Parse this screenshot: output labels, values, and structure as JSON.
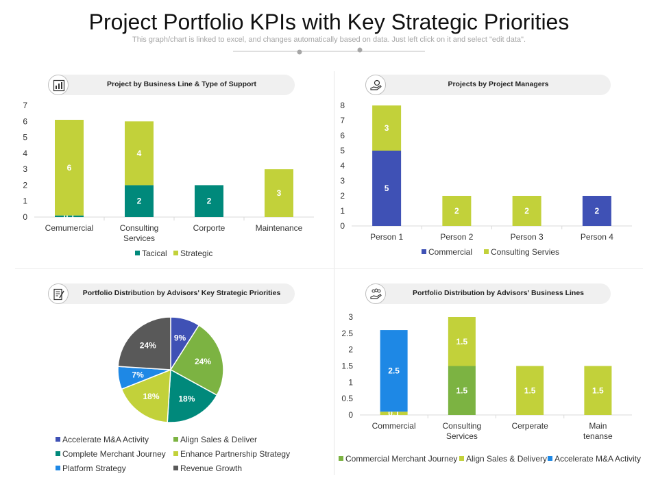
{
  "page": {
    "title": "Project Portfolio KPIs with Key Strategic Priorities",
    "subtitle": "This graph/chart is linked to excel, and changes automatically based on data. Just left click on it and select \"edit data\"."
  },
  "panels": [
    {
      "heading": "Project by Business Line & Type of Support",
      "icon": "chart-report-icon"
    },
    {
      "heading": "Projects by Project Managers",
      "icon": "hand-money-icon"
    },
    {
      "heading": "Portfolio Distribution by Advisors' Key Strategic Priorities",
      "icon": "document-pen-icon"
    },
    {
      "heading": "Portfolio Distribution by Advisors' Business Lines",
      "icon": "hand-people-icon"
    }
  ],
  "colors": {
    "teal": "#00897b",
    "lime": "#c2d13a",
    "blue": "#3f51b5",
    "green": "#7cb342",
    "skyblue": "#1e88e5",
    "gray": "#595959"
  },
  "chart_data": [
    {
      "type": "bar",
      "stacked": true,
      "categories": [
        "Cemumercial",
        "Consulting Services",
        "Corporte",
        "Maintenance"
      ],
      "series": [
        {
          "name": "Tacical",
          "values": [
            0.1,
            2,
            2,
            0
          ],
          "color": "#00897b"
        },
        {
          "name": "Strategic",
          "values": [
            6,
            4,
            0,
            3
          ],
          "color": "#c2d13a"
        }
      ],
      "data_labels": [
        [
          "0.1",
          "2",
          "2",
          null
        ],
        [
          "6",
          "4",
          null,
          "3"
        ]
      ],
      "ylim": [
        0,
        7
      ],
      "yticks": [
        "0",
        "1",
        "2",
        "3",
        "4",
        "5",
        "6",
        "7"
      ],
      "legend": "bottom",
      "grid": false
    },
    {
      "type": "bar",
      "stacked": true,
      "categories": [
        "Person 1",
        "Person 2",
        "Person 3",
        "Person 4"
      ],
      "series": [
        {
          "name": "Commercial",
          "values": [
            5,
            0,
            0,
            2
          ],
          "color": "#3f51b5"
        },
        {
          "name": "Consulting Servies",
          "values": [
            3,
            2,
            2,
            0
          ],
          "color": "#c2d13a"
        }
      ],
      "data_labels": [
        [
          "5",
          null,
          null,
          "2"
        ],
        [
          "3",
          "2",
          "2",
          null
        ]
      ],
      "ylim": [
        0,
        8
      ],
      "yticks": [
        "0",
        "1",
        "2",
        "3",
        "4",
        "5",
        "6",
        "7",
        "8"
      ],
      "legend": "bottom",
      "grid": false
    },
    {
      "type": "pie",
      "slices": [
        {
          "label": "Accelerate M&A Activity",
          "value": 9,
          "text": "9%",
          "color": "#3f51b5"
        },
        {
          "label": "Align Sales & Deliver",
          "value": 24,
          "text": "24%",
          "color": "#7cb342"
        },
        {
          "label": "Complete Merchant Journey",
          "value": 18,
          "text": "18%",
          "color": "#00897b"
        },
        {
          "label": "Enhance Partnership Strategy",
          "value": 18,
          "text": "18%",
          "color": "#c2d13a"
        },
        {
          "label": "Platform Strategy",
          "value": 7,
          "text": "7%",
          "color": "#1e88e5"
        },
        {
          "label": "Revenue Growth",
          "value": 24,
          "text": "24%",
          "color": "#595959"
        }
      ],
      "legend": "bottom"
    },
    {
      "type": "bar",
      "stacked": true,
      "categories": [
        "Commercial",
        "Consulting Services",
        "Cerperate",
        "Main tenanse"
      ],
      "series": [
        {
          "name": "Commercial Merchant Journey",
          "values": [
            0,
            1.5,
            0,
            0
          ],
          "color": "#7cb342"
        },
        {
          "name": "Align Sales & Delivery",
          "values": [
            0.1,
            1.5,
            1.5,
            1.5
          ],
          "color": "#c2d13a"
        },
        {
          "name": "Accelerate M&A Activity",
          "values": [
            2.5,
            0,
            0,
            0
          ],
          "color": "#1e88e5"
        }
      ],
      "data_labels": [
        [
          null,
          "1.5",
          null,
          null
        ],
        [
          "0.1",
          "1.5",
          "1.5",
          "1.5"
        ],
        [
          "2.5",
          null,
          null,
          null
        ]
      ],
      "ylim": [
        0,
        3
      ],
      "yticks": [
        "0",
        "0.5",
        "1",
        "1.5",
        "2",
        "2.5",
        "3"
      ],
      "legend": "bottom",
      "grid": false
    }
  ]
}
